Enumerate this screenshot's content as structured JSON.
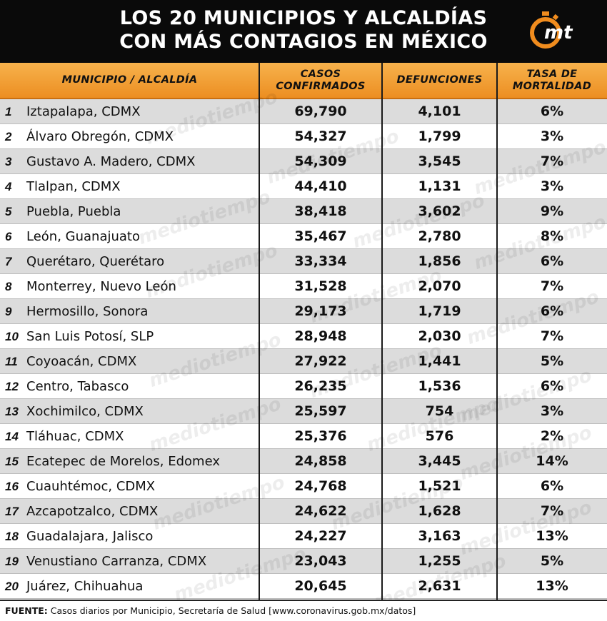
{
  "title": {
    "line1": "LOS 20 MUNICIPIOS Y ALCALDÍAS",
    "line2": "CON MÁS CONTAGIOS EN MÉXICO"
  },
  "logo": {
    "text": "mt",
    "icon": "stopwatch-logo-icon",
    "color": "#f08c1e"
  },
  "watermark": "mediotiempo",
  "colors": {
    "header_orange": "#f0961f",
    "title_bg": "#0a0a0a",
    "stripe": "#dcdcdc"
  },
  "chart_data": {
    "type": "table",
    "columns": [
      "MUNICIPIO / ALCALDÍA",
      "CASOS CONFIRMADOS",
      "DEFUNCIONES",
      "TASA DE MORTALIDAD"
    ],
    "column_lines": [
      [
        "MUNICIPIO / ALCALDÍA"
      ],
      [
        "CASOS",
        "CONFIRMADOS"
      ],
      [
        "DEFUNCIONES"
      ],
      [
        "TASA DE",
        "MORTALIDAD"
      ]
    ],
    "rows": [
      {
        "rank": "1",
        "name": "Iztapalapa, CDMX",
        "cases": "69,790",
        "deaths": "4,101",
        "rate": "6%"
      },
      {
        "rank": "2",
        "name": "Álvaro Obregón, CDMX",
        "cases": "54,327",
        "deaths": "1,799",
        "rate": "3%"
      },
      {
        "rank": "3",
        "name": "Gustavo A. Madero, CDMX",
        "cases": "54,309",
        "deaths": "3,545",
        "rate": "7%"
      },
      {
        "rank": "4",
        "name": "Tlalpan, CDMX",
        "cases": "44,410",
        "deaths": "1,131",
        "rate": "3%"
      },
      {
        "rank": "5",
        "name": "Puebla, Puebla",
        "cases": "38,418",
        "deaths": "3,602",
        "rate": "9%"
      },
      {
        "rank": "6",
        "name": "León, Guanajuato",
        "cases": "35,467",
        "deaths": "2,780",
        "rate": "8%"
      },
      {
        "rank": "7",
        "name": "Querétaro, Querétaro",
        "cases": "33,334",
        "deaths": "1,856",
        "rate": "6%"
      },
      {
        "rank": "8",
        "name": "Monterrey, Nuevo León",
        "cases": "31,528",
        "deaths": "2,070",
        "rate": "7%"
      },
      {
        "rank": "9",
        "name": "Hermosillo, Sonora",
        "cases": "29,173",
        "deaths": "1,719",
        "rate": "6%"
      },
      {
        "rank": "10",
        "name": "San Luis Potosí, SLP",
        "cases": "28,948",
        "deaths": "2,030",
        "rate": "7%"
      },
      {
        "rank": "11",
        "name": "Coyoacán, CDMX",
        "cases": "27,922",
        "deaths": "1,441",
        "rate": "5%"
      },
      {
        "rank": "12",
        "name": "Centro, Tabasco",
        "cases": "26,235",
        "deaths": "1,536",
        "rate": "6%"
      },
      {
        "rank": "13",
        "name": "Xochimilco, CDMX",
        "cases": "25,597",
        "deaths": "754",
        "rate": "3%"
      },
      {
        "rank": "14",
        "name": "Tláhuac, CDMX",
        "cases": "25,376",
        "deaths": "576",
        "rate": "2%"
      },
      {
        "rank": "15",
        "name": "Ecatepec de Morelos, Edomex",
        "cases": "24,858",
        "deaths": "3,445",
        "rate": "14%"
      },
      {
        "rank": "16",
        "name": "Cuauhtémoc, CDMX",
        "cases": "24,768",
        "deaths": "1,521",
        "rate": "6%"
      },
      {
        "rank": "17",
        "name": "Azcapotzalco, CDMX",
        "cases": "24,622",
        "deaths": "1,628",
        "rate": "7%"
      },
      {
        "rank": "18",
        "name": "Guadalajara, Jalisco",
        "cases": "24,227",
        "deaths": "3,163",
        "rate": "13%"
      },
      {
        "rank": "19",
        "name": "Venustiano Carranza, CDMX",
        "cases": "23,043",
        "deaths": "1,255",
        "rate": "5%"
      },
      {
        "rank": "20",
        "name": "Juárez, Chihuahua",
        "cases": "20,645",
        "deaths": "2,631",
        "rate": "13%"
      }
    ]
  },
  "footer": {
    "label": "FUENTE:",
    "text": "Casos diarios por Municipio, Secretaría de Salud [www.coronavirus.gob.mx/datos]"
  }
}
